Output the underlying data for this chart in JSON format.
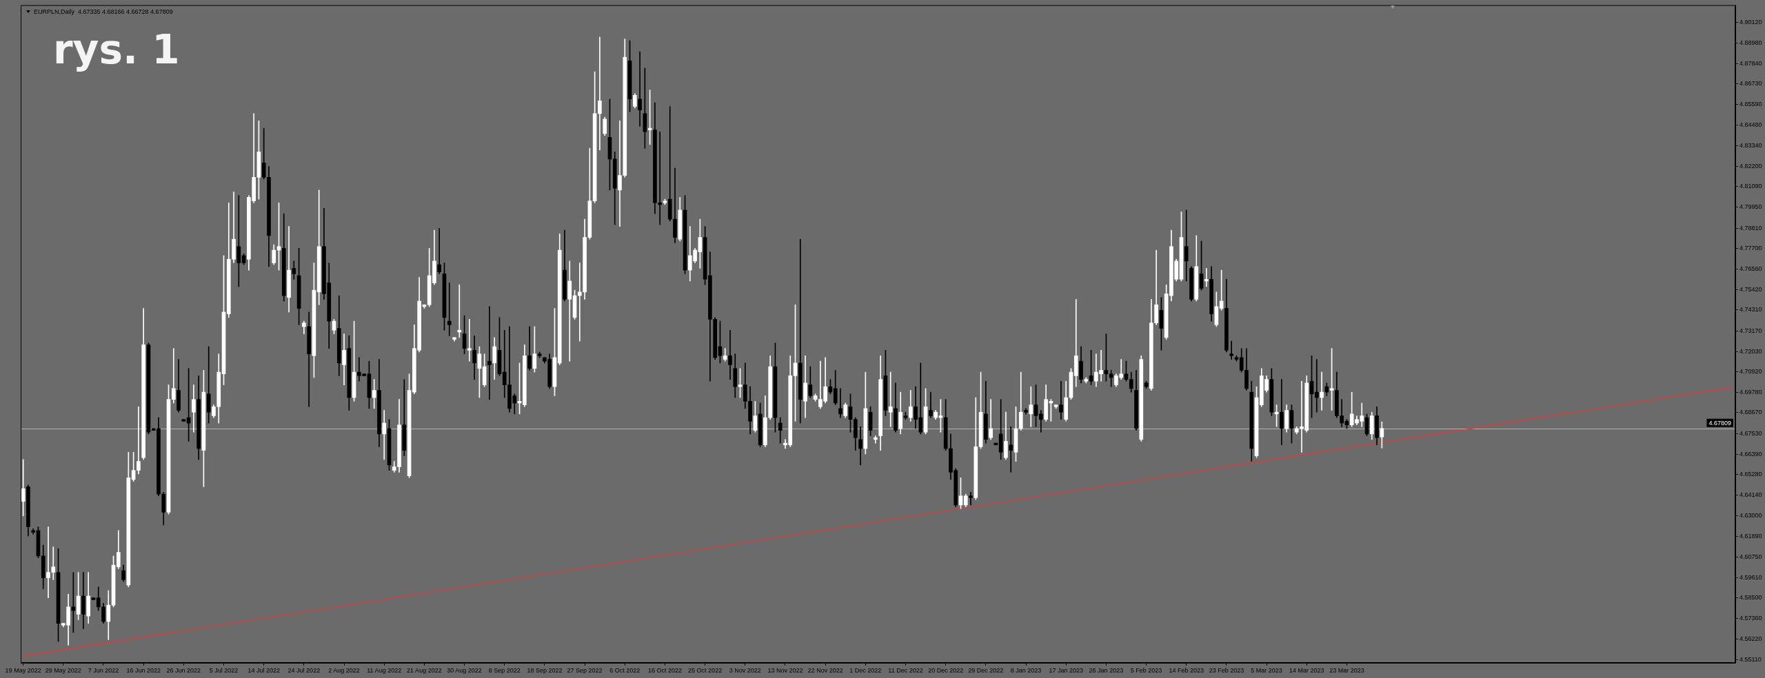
{
  "chart_data": {
    "type": "candlestick",
    "title": "EURPLN,Daily  4.67335 4.68166 4.66728 4.67809",
    "annotations": [
      "rys. 1"
    ],
    "categories": [
      "19 May 2022",
      null,
      null,
      null,
      null,
      null,
      null,
      null,
      "29 May 2022",
      null,
      null,
      null,
      null,
      null,
      null,
      null,
      "7 Jun 2022",
      null,
      null,
      null,
      null,
      null,
      null,
      null,
      "16 Jun 2022",
      null,
      null,
      null,
      null,
      null,
      null,
      null,
      "26 Jun 2022",
      null,
      null,
      null,
      null,
      null,
      null,
      null,
      "5 Jul 2022",
      null,
      null,
      null,
      null,
      null,
      null,
      null,
      "14 Jul 2022",
      null,
      null,
      null,
      null,
      null,
      null,
      null,
      "24 Jul 2022",
      null,
      null,
      null,
      null,
      null,
      null,
      null,
      "2 Aug 2022",
      null,
      null,
      null,
      null,
      null,
      null,
      null,
      "11 Aug 2022",
      null,
      null,
      null,
      null,
      null,
      null,
      null,
      "21 Aug 2022",
      null,
      null,
      null,
      null,
      null,
      null,
      null,
      "30 Aug 2022",
      null,
      null,
      null,
      null,
      null,
      null,
      null,
      "8 Sep 2022",
      null,
      null,
      null,
      null,
      null,
      null,
      null,
      "18 Sep 2022",
      null,
      null,
      null,
      null,
      null,
      null,
      null,
      "27 Sep 2022",
      null,
      null,
      null,
      null,
      null,
      null,
      null,
      "6 Oct 2022",
      null,
      null,
      null,
      null,
      null,
      null,
      null,
      "16 Oct 2022",
      null,
      null,
      null,
      null,
      null,
      null,
      null,
      "25 Oct 2022",
      null,
      null,
      null,
      null,
      null,
      null,
      null,
      "3 Nov 2022",
      null,
      null,
      null,
      null,
      null,
      null,
      null,
      "13 Nov 2022",
      null,
      null,
      null,
      null,
      null,
      null,
      null,
      "22 Nov 2022",
      null,
      null,
      null,
      null,
      null,
      null,
      null,
      "1 Dec 2022",
      null,
      null,
      null,
      null,
      null,
      null,
      null,
      "11 Dec 2022",
      null,
      null,
      null,
      null,
      null,
      null,
      null,
      "20 Dec 2022",
      null,
      null,
      null,
      null,
      null,
      null,
      null,
      "29 Dec 2022",
      null,
      null,
      null,
      null,
      null,
      null,
      null,
      "8 Jan 2023",
      null,
      null,
      null,
      null,
      null,
      null,
      null,
      "17 Jan 2023",
      null,
      null,
      null,
      null,
      null,
      null,
      null,
      "26 Jan 2023",
      null,
      null,
      null,
      null,
      null,
      null,
      null,
      "5 Feb 2023",
      null,
      null,
      null,
      null,
      null,
      null,
      null,
      "14 Feb 2023",
      null,
      null,
      null,
      null,
      null,
      null,
      null,
      "23 Feb 2023",
      null,
      null,
      null,
      null,
      null,
      null,
      null,
      "5 Mar 2023",
      null,
      null,
      null,
      null,
      null,
      null,
      null,
      "14 Mar 2023",
      null,
      null,
      null,
      null,
      null,
      null,
      null,
      "23 Mar 2023",
      null,
      null,
      null,
      null,
      null,
      null,
      null,
      null,
      null,
      null,
      null,
      null,
      null,
      null,
      null,
      null,
      null,
      null,
      null,
      null,
      null,
      null,
      null,
      null,
      null,
      null,
      null,
      null,
      null,
      null,
      null,
      null,
      null,
      null,
      null,
      null,
      null,
      null,
      null,
      null,
      null,
      null,
      null,
      null,
      null,
      null,
      null,
      null,
      null,
      null,
      null,
      null,
      null,
      null,
      null,
      null,
      null,
      null,
      null,
      null,
      null,
      null,
      null,
      null,
      null,
      null,
      null,
      null,
      null,
      null,
      null,
      null,
      null,
      null,
      null,
      null,
      null
    ],
    "ohlc": [
      [
        4.638,
        4.661,
        4.63,
        4.645
      ],
      [
        4.646,
        4.647,
        4.619,
        4.624
      ],
      [
        4.622,
        4.623,
        4.62,
        4.621
      ],
      [
        4.622,
        4.624,
        4.607,
        4.608
      ],
      [
        4.608,
        4.614,
        4.59,
        4.596
      ],
      [
        4.596,
        4.624,
        4.585,
        4.599
      ],
      [
        4.599,
        4.613,
        4.595,
        4.602
      ],
      [
        4.599,
        4.612,
        4.561,
        4.571
      ],
      [
        4.57,
        4.571,
        4.569,
        4.571
      ],
      [
        4.57,
        4.587,
        4.559,
        4.58
      ],
      [
        4.58,
        4.599,
        4.566,
        4.578
      ],
      [
        4.576,
        4.599,
        4.573,
        4.586
      ],
      [
        4.586,
        4.599,
        4.568,
        4.576
      ],
      [
        4.575,
        4.599,
        4.571,
        4.586
      ],
      [
        4.585,
        4.585,
        4.584,
        4.584
      ],
      [
        4.585,
        4.591,
        4.578,
        4.58
      ],
      [
        4.58,
        4.582,
        4.571,
        4.572
      ],
      [
        4.572,
        4.589,
        4.562,
        4.581
      ],
      [
        4.581,
        4.608,
        4.58,
        4.603
      ],
      [
        4.602,
        4.622,
        4.601,
        4.61
      ],
      [
        4.6,
        4.603,
        4.594,
        4.595
      ],
      [
        4.592,
        4.665,
        4.591,
        4.651
      ],
      [
        4.65,
        4.665,
        4.649,
        4.655
      ],
      [
        4.655,
        4.69,
        4.653,
        4.66
      ],
      [
        4.662,
        4.744,
        4.661,
        4.724
      ],
      [
        4.724,
        4.725,
        4.675,
        4.676
      ],
      [
        4.678,
        4.678,
        4.677,
        4.677
      ],
      [
        4.678,
        4.684,
        4.641,
        4.642
      ],
      [
        4.642,
        4.643,
        4.625,
        4.632
      ],
      [
        4.632,
        4.702,
        4.631,
        4.694
      ],
      [
        4.694,
        4.722,
        4.692,
        4.7
      ],
      [
        4.699,
        4.716,
        4.687,
        4.688
      ],
      [
        4.683,
        4.683,
        4.682,
        4.682
      ],
      [
        4.684,
        4.711,
        4.671,
        4.681
      ],
      [
        4.687,
        4.702,
        4.676,
        4.694
      ],
      [
        4.694,
        4.707,
        4.661,
        4.667
      ],
      [
        4.666,
        4.71,
        4.646,
        4.698
      ],
      [
        4.697,
        4.723,
        4.681,
        4.687
      ],
      [
        4.685,
        4.691,
        4.684,
        4.69
      ],
      [
        4.69,
        4.719,
        4.681,
        4.709
      ],
      [
        4.708,
        4.773,
        4.702,
        4.742
      ],
      [
        4.741,
        4.802,
        4.739,
        4.771
      ],
      [
        4.771,
        4.808,
        4.769,
        4.782
      ],
      [
        4.778,
        4.806,
        4.756,
        4.769
      ],
      [
        4.773,
        4.774,
        4.768,
        4.769
      ],
      [
        4.771,
        4.806,
        4.765,
        4.805
      ],
      [
        4.803,
        4.851,
        4.802,
        4.816
      ],
      [
        4.816,
        4.847,
        4.804,
        4.83
      ],
      [
        4.824,
        4.843,
        4.815,
        4.816
      ],
      [
        4.816,
        4.822,
        4.767,
        4.784
      ],
      [
        4.769,
        4.779,
        4.768,
        4.776
      ],
      [
        4.776,
        4.802,
        4.765,
        4.778
      ],
      [
        4.777,
        4.796,
        4.748,
        4.751
      ],
      [
        4.75,
        4.789,
        4.742,
        4.765
      ],
      [
        4.766,
        4.77,
        4.76,
        4.763
      ],
      [
        4.762,
        4.777,
        4.735,
        4.744
      ],
      [
        4.734,
        4.737,
        4.73,
        4.736
      ],
      [
        4.734,
        4.742,
        4.69,
        4.719
      ],
      [
        4.718,
        4.769,
        4.706,
        4.754
      ],
      [
        4.753,
        4.809,
        4.746,
        4.778
      ],
      [
        4.778,
        4.799,
        4.749,
        4.752
      ],
      [
        4.758,
        4.769,
        4.722,
        4.737
      ],
      [
        4.732,
        4.738,
        4.73,
        4.737
      ],
      [
        4.733,
        4.751,
        4.707,
        4.714
      ],
      [
        4.713,
        4.73,
        4.702,
        4.721
      ],
      [
        4.722,
        4.729,
        4.688,
        4.695
      ],
      [
        4.695,
        4.737,
        4.693,
        4.709
      ],
      [
        4.709,
        4.717,
        4.704,
        4.707
      ],
      [
        4.708,
        4.708,
        4.707,
        4.707
      ],
      [
        4.708,
        4.715,
        4.689,
        4.695
      ],
      [
        4.695,
        4.705,
        4.689,
        4.699
      ],
      [
        4.699,
        4.716,
        4.668,
        4.675
      ],
      [
        4.675,
        4.688,
        4.661,
        4.681
      ],
      [
        4.678,
        4.683,
        4.655,
        4.658
      ],
      [
        4.655,
        4.66,
        4.654,
        4.657
      ],
      [
        4.657,
        4.694,
        4.654,
        4.68
      ],
      [
        4.68,
        4.705,
        4.663,
        4.666
      ],
      [
        4.652,
        4.708,
        4.651,
        4.699
      ],
      [
        4.698,
        4.735,
        4.697,
        4.722
      ],
      [
        4.721,
        4.761,
        4.72,
        4.748
      ],
      [
        4.745,
        4.746,
        4.744,
        4.746
      ],
      [
        4.746,
        4.777,
        4.745,
        4.762
      ],
      [
        4.758,
        4.787,
        4.757,
        4.77
      ],
      [
        4.768,
        4.788,
        4.763,
        4.764
      ],
      [
        4.763,
        4.769,
        4.732,
        4.739
      ],
      [
        4.737,
        4.758,
        4.729,
        4.735
      ],
      [
        4.727,
        4.728,
        4.726,
        4.728
      ],
      [
        4.731,
        4.757,
        4.728,
        4.732
      ],
      [
        4.73,
        4.74,
        4.719,
        4.722
      ],
      [
        4.721,
        4.738,
        4.715,
        4.722
      ],
      [
        4.721,
        4.729,
        4.705,
        4.714
      ],
      [
        4.711,
        4.723,
        4.695,
        4.719
      ],
      [
        4.702,
        4.719,
        4.701,
        4.712
      ],
      [
        4.715,
        4.745,
        4.694,
        4.713
      ],
      [
        4.714,
        4.728,
        4.705,
        4.723
      ],
      [
        4.721,
        4.739,
        4.707,
        4.708
      ],
      [
        4.709,
        4.732,
        4.695,
        4.702
      ],
      [
        4.702,
        4.734,
        4.687,
        4.689
      ],
      [
        4.696,
        4.697,
        4.686,
        4.692
      ],
      [
        4.692,
        4.714,
        4.686,
        4.693
      ],
      [
        4.691,
        4.724,
        4.69,
        4.718
      ],
      [
        4.718,
        4.734,
        4.71,
        4.711
      ],
      [
        4.711,
        4.734,
        4.709,
        4.719
      ],
      [
        4.719,
        4.72,
        4.717,
        4.718
      ],
      [
        4.717,
        4.717,
        4.714,
        4.715
      ],
      [
        4.716,
        4.719,
        4.7,
        4.701
      ],
      [
        4.701,
        4.744,
        4.696,
        4.717
      ],
      [
        4.714,
        4.785,
        4.713,
        4.776
      ],
      [
        4.765,
        4.787,
        4.748,
        4.749
      ],
      [
        4.749,
        4.77,
        4.715,
        4.759
      ],
      [
        4.739,
        4.754,
        4.738,
        4.751
      ],
      [
        4.751,
        4.769,
        4.726,
        4.753
      ],
      [
        4.753,
        4.793,
        4.749,
        4.783
      ],
      [
        4.783,
        4.832,
        4.782,
        4.803
      ],
      [
        4.803,
        4.874,
        4.802,
        4.851
      ],
      [
        4.851,
        4.893,
        4.831,
        4.858
      ],
      [
        4.84,
        4.849,
        4.839,
        4.848
      ],
      [
        4.838,
        4.859,
        4.809,
        4.826
      ],
      [
        4.826,
        4.83,
        4.79,
        4.81
      ],
      [
        4.809,
        4.847,
        4.789,
        4.817
      ],
      [
        4.817,
        4.892,
        4.816,
        4.882
      ],
      [
        4.88,
        4.891,
        4.852,
        4.859
      ],
      [
        4.855,
        4.862,
        4.854,
        4.861
      ],
      [
        4.859,
        4.885,
        4.844,
        4.853
      ],
      [
        4.851,
        4.876,
        4.832,
        4.841
      ],
      [
        4.842,
        4.864,
        4.834,
        4.843
      ],
      [
        4.842,
        4.857,
        4.796,
        4.802
      ],
      [
        4.802,
        4.841,
        4.79,
        4.801
      ],
      [
        4.802,
        4.804,
        4.801,
        4.803
      ],
      [
        4.804,
        4.855,
        4.792,
        4.793
      ],
      [
        4.793,
        4.821,
        4.78,
        4.783
      ],
      [
        4.782,
        4.805,
        4.781,
        4.798
      ],
      [
        4.798,
        4.806,
        4.763,
        4.765
      ],
      [
        4.765,
        4.789,
        4.759,
        4.773
      ],
      [
        4.77,
        4.777,
        4.769,
        4.776
      ],
      [
        4.775,
        4.793,
        4.766,
        4.783
      ],
      [
        4.783,
        4.789,
        4.757,
        4.76
      ],
      [
        4.762,
        4.775,
        4.704,
        4.738
      ],
      [
        4.738,
        4.739,
        4.716,
        4.717
      ],
      [
        4.723,
        4.737,
        4.714,
        4.718
      ],
      [
        4.716,
        4.722,
        4.715,
        4.718
      ],
      [
        4.718,
        4.732,
        4.705,
        4.713
      ],
      [
        4.711,
        4.719,
        4.695,
        4.701
      ],
      [
        4.701,
        4.711,
        4.695,
        4.702
      ],
      [
        4.702,
        4.714,
        4.689,
        4.693
      ],
      [
        4.693,
        4.701,
        4.675,
        4.682
      ],
      [
        4.677,
        4.693,
        4.676,
        4.685
      ],
      [
        4.686,
        4.692,
        4.668,
        4.669
      ],
      [
        4.669,
        4.696,
        4.668,
        4.684
      ],
      [
        4.684,
        4.718,
        4.683,
        4.712
      ],
      [
        4.712,
        4.725,
        4.676,
        4.684
      ],
      [
        4.681,
        4.684,
        4.67,
        4.677
      ],
      [
        4.669,
        4.672,
        4.667,
        4.67
      ],
      [
        4.669,
        4.718,
        4.668,
        4.707
      ],
      [
        4.707,
        4.746,
        4.682,
        4.714
      ],
      [
        4.714,
        4.782,
        4.681,
        4.694
      ],
      [
        4.693,
        4.718,
        4.684,
        4.703
      ],
      [
        4.702,
        4.712,
        4.695,
        4.696
      ],
      [
        4.694,
        4.697,
        4.693,
        4.696
      ],
      [
        4.69,
        4.715,
        4.689,
        4.694
      ],
      [
        4.693,
        4.717,
        4.692,
        4.701
      ],
      [
        4.701,
        4.705,
        4.697,
        4.698
      ],
      [
        4.7,
        4.71,
        4.691,
        4.692
      ],
      [
        4.689,
        4.7,
        4.684,
        4.686
      ],
      [
        4.685,
        4.692,
        4.684,
        4.691
      ],
      [
        4.69,
        4.697,
        4.676,
        4.683
      ],
      [
        4.683,
        4.684,
        4.666,
        4.673
      ],
      [
        4.672,
        4.679,
        4.658,
        4.667
      ],
      [
        4.667,
        4.709,
        4.664,
        4.689
      ],
      [
        4.687,
        4.69,
        4.674,
        4.677
      ],
      [
        4.672,
        4.674,
        4.67,
        4.673
      ],
      [
        4.674,
        4.718,
        4.666,
        4.705
      ],
      [
        4.707,
        4.721,
        4.685,
        4.688
      ],
      [
        4.687,
        4.709,
        4.679,
        4.69
      ],
      [
        4.689,
        4.703,
        4.676,
        4.677
      ],
      [
        4.678,
        4.698,
        4.675,
        4.687
      ],
      [
        4.685,
        4.687,
        4.683,
        4.684
      ],
      [
        4.684,
        4.699,
        4.682,
        4.69
      ],
      [
        4.69,
        4.701,
        4.678,
        4.683
      ],
      [
        4.684,
        4.714,
        4.675,
        4.676
      ],
      [
        4.676,
        4.7,
        4.675,
        4.69
      ],
      [
        4.688,
        4.698,
        4.684,
        4.685
      ],
      [
        4.684,
        4.688,
        4.683,
        4.687
      ],
      [
        4.684,
        4.694,
        4.676,
        4.685
      ],
      [
        4.684,
        4.694,
        4.666,
        4.667
      ],
      [
        4.667,
        4.675,
        4.65,
        4.654
      ],
      [
        4.655,
        4.656,
        4.635,
        4.636
      ],
      [
        4.636,
        4.651,
        4.634,
        4.641
      ],
      [
        4.636,
        4.642,
        4.635,
        4.641
      ],
      [
        4.641,
        4.643,
        4.636,
        4.64
      ],
      [
        4.64,
        4.695,
        4.639,
        4.668
      ],
      [
        4.668,
        4.709,
        4.667,
        4.687
      ],
      [
        4.686,
        4.704,
        4.67,
        4.672
      ],
      [
        4.673,
        4.694,
        4.672,
        4.678
      ],
      [
        4.67,
        4.67,
        4.669,
        4.669
      ],
      [
        4.675,
        4.694,
        4.661,
        4.665
      ],
      [
        4.662,
        4.687,
        4.661,
        4.671
      ],
      [
        4.669,
        4.679,
        4.654,
        4.666
      ],
      [
        4.665,
        4.69,
        4.66,
        4.678
      ],
      [
        4.678,
        4.709,
        4.677,
        4.687
      ],
      [
        4.688,
        4.689,
        4.686,
        4.687
      ],
      [
        4.686,
        4.701,
        4.679,
        4.691
      ],
      [
        4.691,
        4.702,
        4.679,
        4.685
      ],
      [
        4.686,
        4.688,
        4.676,
        4.683
      ],
      [
        4.683,
        4.702,
        4.682,
        4.694
      ],
      [
        4.692,
        4.694,
        4.682,
        4.693
      ],
      [
        4.69,
        4.691,
        4.689,
        4.691
      ],
      [
        4.691,
        4.704,
        4.683,
        4.687
      ],
      [
        4.683,
        4.704,
        4.682,
        4.695
      ],
      [
        4.695,
        4.711,
        4.694,
        4.709
      ],
      [
        4.707,
        4.749,
        4.701,
        4.718
      ],
      [
        4.715,
        4.723,
        4.703,
        4.705
      ],
      [
        4.704,
        4.706,
        4.703,
        4.705
      ],
      [
        4.707,
        4.721,
        4.702,
        4.704
      ],
      [
        4.704,
        4.719,
        4.701,
        4.709
      ],
      [
        4.708,
        4.721,
        4.704,
        4.71
      ],
      [
        4.71,
        4.73,
        4.704,
        4.708
      ],
      [
        4.708,
        4.71,
        4.701,
        4.706
      ],
      [
        4.702,
        4.708,
        4.701,
        4.707
      ],
      [
        4.706,
        4.716,
        4.705,
        4.708
      ],
      [
        4.708,
        4.715,
        4.704,
        4.705
      ],
      [
        4.705,
        4.709,
        4.698,
        4.7
      ],
      [
        4.699,
        4.71,
        4.677,
        4.678
      ],
      [
        4.672,
        4.718,
        4.671,
        4.716
      ],
      [
        4.703,
        4.704,
        4.7,
        4.701
      ],
      [
        4.7,
        4.749,
        4.699,
        4.736
      ],
      [
        4.736,
        4.776,
        4.735,
        4.746
      ],
      [
        4.743,
        4.75,
        4.721,
        4.733
      ],
      [
        4.728,
        4.757,
        4.727,
        4.752
      ],
      [
        4.751,
        4.787,
        4.748,
        4.778
      ],
      [
        4.76,
        4.771,
        4.759,
        4.77
      ],
      [
        4.76,
        4.797,
        4.759,
        4.783
      ],
      [
        4.778,
        4.798,
        4.759,
        4.77
      ],
      [
        4.766,
        4.767,
        4.748,
        4.749
      ],
      [
        4.749,
        4.784,
        4.748,
        4.767
      ],
      [
        4.763,
        4.781,
        4.754,
        4.755
      ],
      [
        4.759,
        4.766,
        4.756,
        4.76
      ],
      [
        4.76,
        4.767,
        4.737,
        4.741
      ],
      [
        4.735,
        4.753,
        4.734,
        4.745
      ],
      [
        4.744,
        4.765,
        4.743,
        4.748
      ],
      [
        4.744,
        4.76,
        4.72,
        4.721
      ],
      [
        4.719,
        4.726,
        4.716,
        4.718
      ],
      [
        4.717,
        4.718,
        4.715,
        4.716
      ],
      [
        4.717,
        4.722,
        4.709,
        4.71
      ],
      [
        4.71,
        4.722,
        4.699,
        4.7
      ],
      [
        4.698,
        4.704,
        4.66,
        4.667
      ],
      [
        4.663,
        4.701,
        4.662,
        4.695
      ],
      [
        4.691,
        4.711,
        4.69,
        4.707
      ],
      [
        4.699,
        4.707,
        4.698,
        4.705
      ],
      [
        4.705,
        4.711,
        4.685,
        4.687
      ],
      [
        4.686,
        4.691,
        4.679,
        4.687
      ],
      [
        4.687,
        4.705,
        4.669,
        4.678
      ],
      [
        4.678,
        4.691,
        4.676,
        4.688
      ],
      [
        4.688,
        4.691,
        4.67,
        4.678
      ],
      [
        4.676,
        4.679,
        4.675,
        4.678
      ],
      [
        4.678,
        4.704,
        4.665,
        4.679
      ],
      [
        4.677,
        4.707,
        4.676,
        4.703
      ],
      [
        4.704,
        4.718,
        4.684,
        4.697
      ],
      [
        4.698,
        4.716,
        4.687,
        4.695
      ],
      [
        4.695,
        4.709,
        4.688,
        4.698
      ],
      [
        4.701,
        4.703,
        4.696,
        4.698
      ],
      [
        4.699,
        4.722,
        4.688,
        4.7
      ],
      [
        4.699,
        4.709,
        4.684,
        4.685
      ],
      [
        4.685,
        4.694,
        4.679,
        4.681
      ],
      [
        4.682,
        4.683,
        4.678,
        4.68
      ],
      [
        4.68,
        4.698,
        4.679,
        4.686
      ],
      [
        4.681,
        4.685,
        4.68,
        4.683
      ],
      [
        4.682,
        4.692,
        4.679,
        4.685
      ],
      [
        4.684,
        4.686,
        4.674,
        4.675
      ],
      [
        4.675,
        4.687,
        4.672,
        4.685
      ],
      [
        4.685,
        4.69,
        4.669,
        4.673
      ],
      [
        4.67335,
        4.68166,
        4.66728,
        4.67809
      ],
      null,
      null,
      null,
      null,
      null,
      null,
      null,
      null,
      null,
      null,
      null,
      null,
      null,
      null,
      null,
      null,
      null,
      null,
      null,
      null,
      null,
      null,
      null,
      null,
      null,
      null,
      null,
      null,
      null,
      null,
      null,
      null,
      null,
      null,
      null,
      null,
      null,
      null,
      null,
      null,
      null,
      null,
      null,
      null,
      null,
      null,
      null,
      null,
      null,
      null,
      null,
      null,
      null,
      null,
      null,
      null,
      null,
      null,
      null,
      null,
      null,
      null,
      null,
      null,
      null,
      null,
      null,
      null,
      null,
      null
    ],
    "colors": [
      "#ffffff",
      "#000000",
      "#000000",
      "#000000",
      "#000000",
      "#ffffff",
      "#ffffff",
      "#000000",
      "#ffffff",
      "#ffffff",
      "#000000",
      "#ffffff",
      "#000000",
      "#ffffff",
      "#000000",
      "#000000",
      "#000000",
      "#ffffff",
      "#ffffff",
      "#ffffff",
      "#000000",
      "#ffffff",
      "#ffffff",
      "#ffffff",
      "#ffffff",
      "#000000",
      "#000000",
      "#000000",
      "#000000",
      "#ffffff",
      "#ffffff",
      "#000000",
      "#000000",
      "#000000",
      "#ffffff",
      "#000000",
      "#ffffff",
      "#000000",
      "#ffffff",
      "#ffffff",
      "#ffffff",
      "#ffffff",
      "#ffffff",
      "#000000",
      "#000000",
      "#ffffff",
      "#ffffff",
      "#ffffff",
      "#000000",
      "#000000",
      "#ffffff",
      "#ffffff",
      "#000000",
      "#ffffff",
      "#000000",
      "#000000",
      "#ffffff",
      "#000000",
      "#ffffff",
      "#ffffff",
      "#000000",
      "#000000",
      "#ffffff",
      "#000000",
      "#ffffff",
      "#000000",
      "#ffffff",
      "#000000",
      "#000000",
      "#000000",
      "#ffffff",
      "#000000",
      "#ffffff",
      "#000000",
      "#ffffff",
      "#ffffff",
      "#000000",
      "#ffffff",
      "#ffffff",
      "#ffffff",
      "#ffffff",
      "#ffffff",
      "#ffffff",
      "#000000",
      "#000000",
      "#000000",
      "#ffffff",
      "#ffffff",
      "#000000",
      "#ffffff",
      "#000000",
      "#ffffff",
      "#ffffff",
      "#000000",
      "#ffffff",
      "#000000",
      "#000000",
      "#000000",
      "#000000",
      "#ffffff",
      "#ffffff",
      "#000000",
      "#ffffff",
      "#000000",
      "#000000",
      "#000000",
      "#ffffff",
      "#ffffff",
      "#000000",
      "#ffffff",
      "#ffffff",
      "#ffffff",
      "#ffffff",
      "#ffffff",
      "#ffffff",
      "#ffffff",
      "#ffffff",
      "#000000",
      "#000000",
      "#ffffff",
      "#ffffff",
      "#000000",
      "#ffffff",
      "#000000",
      "#000000",
      "#ffffff",
      "#000000",
      "#000000",
      "#ffffff",
      "#000000",
      "#000000",
      "#ffffff",
      "#000000",
      "#ffffff",
      "#ffffff",
      "#ffffff",
      "#000000",
      "#000000",
      "#000000",
      "#000000",
      "#ffffff",
      "#000000",
      "#000000",
      "#ffffff",
      "#000000",
      "#000000",
      "#ffffff",
      "#000000",
      "#ffffff",
      "#ffffff",
      "#000000",
      "#000000",
      "#ffffff",
      "#ffffff",
      "#ffffff",
      "#000000",
      "#ffffff",
      "#000000",
      "#ffffff",
      "#ffffff",
      "#ffffff",
      "#000000",
      "#000000",
      "#000000",
      "#ffffff",
      "#000000",
      "#000000",
      "#000000",
      "#ffffff",
      "#000000",
      "#ffffff",
      "#ffffff",
      "#000000",
      "#ffffff",
      "#000000",
      "#ffffff",
      "#000000",
      "#ffffff",
      "#000000",
      "#000000",
      "#ffffff",
      "#000000",
      "#ffffff",
      "#ffffff",
      "#000000",
      "#000000",
      "#000000",
      "#ffffff",
      "#ffffff",
      "#000000",
      "#ffffff",
      "#ffffff",
      "#000000",
      "#ffffff",
      "#000000",
      "#000000",
      "#ffffff",
      "#000000",
      "#ffffff",
      "#ffffff",
      "#000000",
      "#ffffff",
      "#000000",
      "#000000",
      "#ffffff",
      "#ffffff",
      "#ffffff",
      "#000000",
      "#ffffff",
      "#ffffff",
      "#ffffff",
      "#000000",
      "#ffffff",
      "#000000",
      "#ffffff",
      "#ffffff",
      "#000000",
      "#000000",
      "#ffffff",
      "#ffffff",
      "#000000",
      "#000000",
      "#000000",
      "#ffffff",
      "#000000",
      "#ffffff",
      "#ffffff",
      "#000000",
      "#ffffff",
      "#ffffff",
      "#ffffff",
      "#ffffff",
      "#000000",
      "#000000",
      "#ffffff",
      "#000000",
      "#ffffff",
      "#000000",
      "#ffffff",
      "#ffffff",
      "#000000",
      "#000000",
      "#000000",
      "#000000",
      "#000000",
      "#000000",
      "#ffffff",
      "#ffffff",
      "#ffffff",
      "#000000",
      "#ffffff",
      "#000000",
      "#ffffff",
      "#000000",
      "#ffffff",
      "#ffffff",
      "#ffffff",
      "#000000",
      "#000000",
      "#ffffff",
      "#000000",
      "#ffffff",
      "#000000",
      "#000000",
      "#000000",
      "#ffffff",
      "#ffffff",
      "#ffffff",
      "#000000",
      "#ffffff",
      "#000000",
      "#ffffff",
      null,
      null,
      null,
      null,
      null,
      null,
      null,
      null,
      null,
      null,
      null,
      null,
      null,
      null,
      null,
      null,
      null,
      null,
      null,
      null,
      null,
      null,
      null,
      null,
      null,
      null,
      null,
      null,
      null,
      null,
      null,
      null,
      null,
      null,
      null,
      null,
      null,
      null,
      null,
      null,
      null,
      null,
      null,
      null,
      null,
      null,
      null,
      null,
      null,
      null,
      null,
      null,
      null,
      null,
      null,
      null,
      null,
      null,
      null,
      null,
      null,
      null,
      null,
      null,
      null,
      null,
      null,
      null,
      null,
      null
    ],
    "series": [
      {
        "type": "line",
        "color": "#dc3c3c",
        "values": [
          4.5528,
          null,
          null,
          null,
          null,
          null,
          null,
          null,
          null,
          null,
          null,
          null,
          null,
          null,
          null,
          null,
          null,
          null,
          null,
          null,
          null,
          null,
          null,
          null,
          null,
          null,
          null,
          null,
          null,
          null,
          null,
          null,
          null,
          null,
          null,
          null,
          null,
          null,
          null,
          null,
          null,
          null,
          null,
          null,
          null,
          null,
          null,
          null,
          null,
          null,
          null,
          null,
          null,
          null,
          null,
          null,
          null,
          null,
          null,
          null,
          null,
          null,
          null,
          null,
          null,
          null,
          null,
          null,
          null,
          null,
          null,
          null,
          null,
          null,
          null,
          null,
          null,
          null,
          null,
          null,
          null,
          null,
          null,
          null,
          null,
          null,
          null,
          null,
          null,
          null,
          null,
          null,
          null,
          null,
          null,
          null,
          null,
          null,
          null,
          null,
          null,
          null,
          null,
          null,
          null,
          null,
          null,
          null,
          null,
          null,
          null,
          null,
          null,
          null,
          null,
          null,
          null,
          null,
          null,
          null,
          null,
          null,
          null,
          null,
          null,
          null,
          null,
          null,
          null,
          null,
          null,
          null,
          null,
          null,
          null,
          null,
          null,
          null,
          null,
          null,
          null,
          null,
          null,
          null,
          null,
          null,
          null,
          null,
          null,
          null,
          null,
          null,
          null,
          null,
          null,
          null,
          null,
          null,
          null,
          null,
          null,
          null,
          null,
          null,
          null,
          null,
          null,
          null,
          null,
          null,
          null,
          null,
          null,
          null,
          null,
          null,
          null,
          null,
          null,
          null,
          null,
          null,
          null,
          null,
          null,
          null,
          null,
          null,
          null,
          null,
          null,
          null,
          null,
          null,
          null,
          null,
          null,
          null,
          null,
          null,
          null,
          null,
          null,
          null,
          null,
          null,
          null,
          null,
          null,
          null,
          null,
          null,
          null,
          null,
          null,
          null,
          null,
          null,
          null,
          null,
          null,
          null,
          null,
          null,
          null,
          null,
          null,
          null,
          null,
          null,
          null,
          null,
          null,
          null,
          null,
          null,
          null,
          null,
          null,
          null,
          null,
          null,
          null,
          null,
          null,
          null,
          null,
          null,
          null,
          null,
          null,
          null,
          null,
          null,
          null,
          null,
          null,
          null,
          null,
          null,
          null,
          null,
          null,
          null,
          null,
          null,
          null,
          null,
          null,
          null,
          null,
          null,
          null,
          null,
          null,
          null,
          null,
          null,
          null,
          null,
          null,
          null,
          null,
          null,
          null,
          null,
          null,
          null,
          null,
          null,
          null,
          null,
          null,
          null,
          null,
          null,
          null,
          null,
          null,
          null,
          null,
          null,
          null,
          null,
          null,
          null,
          null,
          null,
          null,
          null,
          null,
          null,
          null,
          null,
          null,
          null,
          null,
          null,
          null,
          null,
          null,
          null,
          null,
          null,
          null,
          null,
          null,
          null,
          null,
          null,
          null,
          null,
          null,
          null,
          null,
          null,
          null,
          null,
          null,
          null,
          null,
          4.7005
        ]
      }
    ],
    "ylim": [
      4.5493,
      4.9106
    ],
    "yticks": [
      {
        "value": 4.9012,
        "label": "4.90120"
      },
      {
        "value": 4.8898,
        "label": "4.88980"
      },
      {
        "value": 4.8784,
        "label": "4.87840"
      },
      {
        "value": 4.8673,
        "label": "4.86730"
      },
      {
        "value": 4.8559,
        "label": "4.85590"
      },
      {
        "value": 4.8448,
        "label": "4.84480"
      },
      {
        "value": 4.8334,
        "label": "4.83340"
      },
      {
        "value": 4.822,
        "label": "4.82200"
      },
      {
        "value": 4.8109,
        "label": "4.81090"
      },
      {
        "value": 4.7995,
        "label": "4.79950"
      },
      {
        "value": 4.7881,
        "label": "4.78810"
      },
      {
        "value": 4.777,
        "label": "4.77700"
      },
      {
        "value": 4.7656,
        "label": "4.76560"
      },
      {
        "value": 4.7542,
        "label": "4.75420"
      },
      {
        "value": 4.7431,
        "label": "4.74310"
      },
      {
        "value": 4.7317,
        "label": "4.73170"
      },
      {
        "value": 4.7203,
        "label": "4.72030"
      },
      {
        "value": 4.7092,
        "label": "4.70920"
      },
      {
        "value": 4.6978,
        "label": "4.69780"
      },
      {
        "value": 4.6867,
        "label": "4.68670"
      },
      {
        "value": 4.6753,
        "label": "4.67530"
      },
      {
        "value": 4.6639,
        "label": "4.66390"
      },
      {
        "value": 4.6528,
        "label": "4.65280"
      },
      {
        "value": 4.6414,
        "label": "4.64140"
      },
      {
        "value": 4.63,
        "label": "4.63000"
      },
      {
        "value": 4.6189,
        "label": "4.61890"
      },
      {
        "value": 4.6075,
        "label": "4.60750"
      },
      {
        "value": 4.5961,
        "label": "4.59610"
      },
      {
        "value": 4.585,
        "label": "4.58500"
      },
      {
        "value": 4.5736,
        "label": "4.57360"
      },
      {
        "value": 4.5622,
        "label": "4.56220"
      },
      {
        "value": 4.5511,
        "label": "4.55110"
      }
    ],
    "ref_lines": [
      {
        "axis": "y",
        "value": 4.67809,
        "label": "4.67809",
        "color": "#b4b4b4"
      }
    ]
  }
}
